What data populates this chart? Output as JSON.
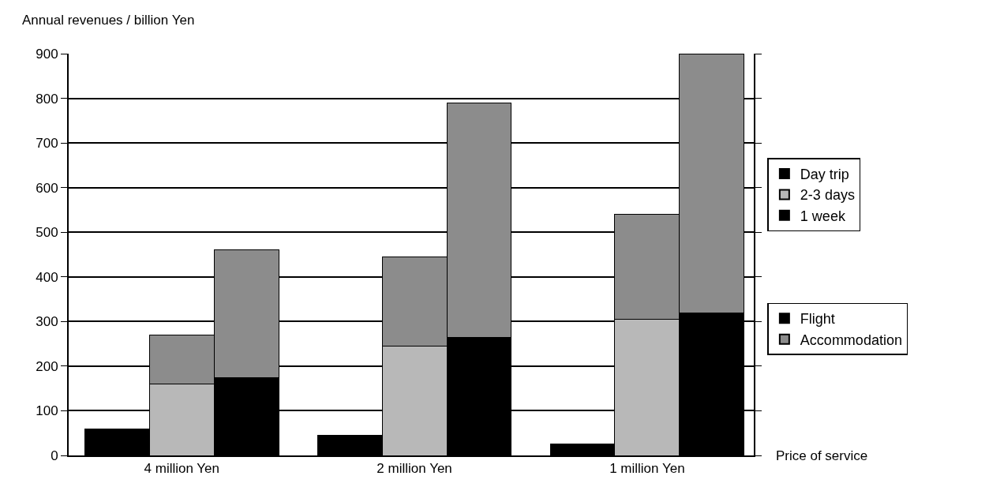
{
  "chart_data": {
    "type": "bar",
    "stacked": true,
    "ylabel": "Annual revenues / billion Yen",
    "xlabel": "Price of service",
    "categories": [
      null,
      "4 million Yen",
      null,
      null,
      "2 million Yen",
      null,
      null,
      "1 million Yen",
      null
    ],
    "series": [
      {
        "name": "Day trip",
        "color": "#000000",
        "values": [
          60,
          null,
          null,
          45,
          null,
          null,
          25,
          null,
          null
        ]
      },
      {
        "name": "2-3 days",
        "color": "#b8b8b8",
        "values": [
          null,
          160,
          null,
          null,
          245,
          null,
          null,
          305,
          null
        ]
      },
      {
        "name": "1 week",
        "color": "#000000",
        "values": [
          null,
          null,
          175,
          null,
          null,
          265,
          null,
          null,
          320
        ]
      },
      {
        "name": "Flight",
        "color": "#000000",
        "values": [
          null,
          null,
          null,
          null,
          null,
          null,
          null,
          null,
          null
        ]
      },
      {
        "name": "Accommodation",
        "color": "#8c8c8c",
        "values": [
          null,
          110,
          285,
          null,
          200,
          525,
          null,
          235,
          580
        ]
      }
    ],
    "ylim": [
      0,
      900
    ],
    "yticks": [
      0,
      100,
      200,
      300,
      400,
      500,
      600,
      700,
      800,
      900
    ],
    "grid": "y",
    "legend": "right"
  }
}
